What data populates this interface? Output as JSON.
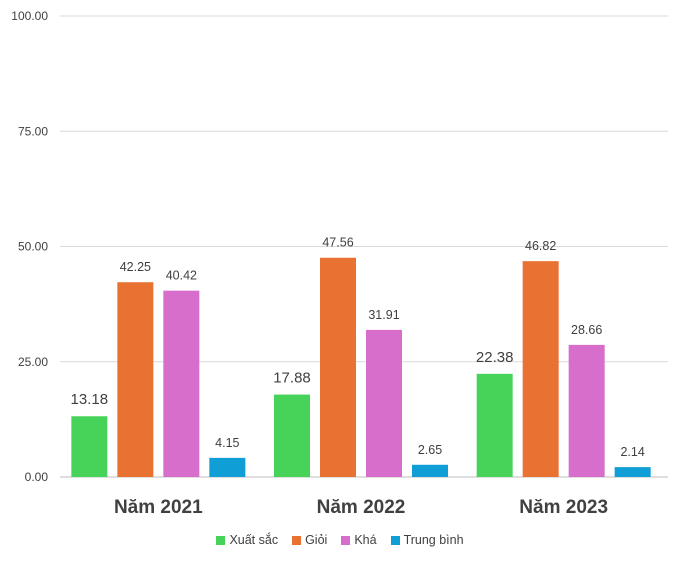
{
  "chart_data": {
    "type": "bar",
    "categories": [
      "Năm 2021",
      "Năm 2022",
      "Năm 2023"
    ],
    "series": [
      {
        "name": "Xuất sắc",
        "color": "#47d35a",
        "values": [
          13.18,
          17.88,
          22.38
        ],
        "labels": [
          "13.18",
          "17.88",
          "22.38"
        ]
      },
      {
        "name": "Giỏi",
        "color": "#e97132",
        "values": [
          42.25,
          47.56,
          46.82
        ],
        "labels": [
          "42.25",
          "47.56",
          "46.82"
        ]
      },
      {
        "name": "Khá",
        "color": "#d86ecc",
        "values": [
          40.42,
          31.91,
          28.66
        ],
        "labels": [
          "40.42",
          "31.91",
          "28.66"
        ]
      },
      {
        "name": "Trung bình",
        "color": "#0f9ed5",
        "values": [
          4.15,
          2.65,
          2.14
        ],
        "labels": [
          "4.15",
          "2.65",
          "2.14"
        ]
      }
    ],
    "ylim": [
      0,
      100
    ],
    "y_ticks": [
      "0.00",
      "25.00",
      "50.00",
      "75.00",
      "100.00"
    ],
    "title": "",
    "xlabel": "",
    "ylabel": "",
    "grid": true,
    "legend_position": "bottom"
  }
}
